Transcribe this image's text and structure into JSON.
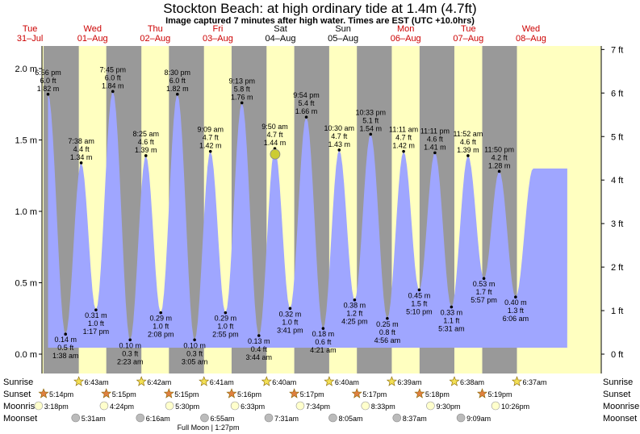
{
  "title": "Stockton Beach: at high  ordinary tide at 1.4m (4.7ft)",
  "subtitle": "Image captured 7 minutes after high water. Times are EST (UTC +10.0hrs)",
  "chart_data": {
    "type": "area",
    "x_unit": "date",
    "y_unit": "m",
    "ylim_m": [
      -0.08,
      2.12
    ],
    "y_ticks_m": [
      "0.0 m",
      "0.5 m",
      "1.0 m",
      "1.5 m",
      "2.0 m"
    ],
    "y_ticks_ft": [
      "0 ft",
      "1 ft",
      "2 ft",
      "3 ft",
      "4 ft",
      "5 ft",
      "6 ft",
      "7 ft"
    ],
    "days": [
      {
        "dow": "Tue",
        "date": "31–Jul"
      },
      {
        "dow": "Wed",
        "date": "01–Aug"
      },
      {
        "dow": "Thu",
        "date": "02–Aug"
      },
      {
        "dow": "Fri",
        "date": "03–Aug"
      },
      {
        "dow": "Sat",
        "date": "04–Aug"
      },
      {
        "dow": "Sun",
        "date": "05–Aug"
      },
      {
        "dow": "Mon",
        "date": "06–Aug"
      },
      {
        "dow": "Tue",
        "date": "07–Aug"
      },
      {
        "dow": "Wed",
        "date": "08–Aug"
      }
    ],
    "tides": [
      {
        "day": 0,
        "time": "6:56 pm",
        "ft": "6.0 ft",
        "m": 1.82,
        "label": "1.82 m",
        "type": "high"
      },
      {
        "day": 1,
        "time": "1:38 am",
        "ft": "0.5 ft",
        "m": 0.14,
        "label": "0.14 m",
        "type": "low"
      },
      {
        "day": 1,
        "time": "7:38 am",
        "ft": "4.4 ft",
        "m": 1.34,
        "label": "1.34 m",
        "type": "high"
      },
      {
        "day": 1,
        "time": "1:17 pm",
        "ft": "1.0 ft",
        "m": 0.31,
        "label": "0.31 m",
        "type": "low"
      },
      {
        "day": 1,
        "time": "7:45 pm",
        "ft": "6.0 ft",
        "m": 1.84,
        "label": "1.84 m",
        "type": "high"
      },
      {
        "day": 2,
        "time": "2:23 am",
        "ft": "0.3 ft",
        "m": 0.1,
        "label": "0.10 m",
        "type": "low"
      },
      {
        "day": 2,
        "time": "8:25 am",
        "ft": "4.6 ft",
        "m": 1.39,
        "label": "1.39 m",
        "type": "high"
      },
      {
        "day": 2,
        "time": "2:08 pm",
        "ft": "1.0 ft",
        "m": 0.29,
        "label": "0.29 m",
        "type": "low"
      },
      {
        "day": 2,
        "time": "8:30 pm",
        "ft": "6.0 ft",
        "m": 1.82,
        "label": "1.82 m",
        "type": "high"
      },
      {
        "day": 3,
        "time": "3:05 am",
        "ft": "0.3 ft",
        "m": 0.1,
        "label": "0.10 m",
        "type": "low"
      },
      {
        "day": 3,
        "time": "9:09 am",
        "ft": "4.7 ft",
        "m": 1.42,
        "label": "1.42 m",
        "type": "high"
      },
      {
        "day": 3,
        "time": "2:55 pm",
        "ft": "1.0 ft",
        "m": 0.29,
        "label": "0.29 m",
        "type": "low"
      },
      {
        "day": 3,
        "time": "9:13 pm",
        "ft": "5.8 ft",
        "m": 1.76,
        "label": "1.76 m",
        "type": "high"
      },
      {
        "day": 4,
        "time": "3:44 am",
        "ft": "0.4 ft",
        "m": 0.13,
        "label": "0.13 m",
        "type": "low"
      },
      {
        "day": 4,
        "time": "9:50 am",
        "ft": "4.7 ft",
        "m": 1.44,
        "label": "1.44 m",
        "type": "high"
      },
      {
        "day": 4,
        "time": "3:41 pm",
        "ft": "1.0 ft",
        "m": 0.32,
        "label": "0.32 m",
        "type": "low"
      },
      {
        "day": 4,
        "time": "9:54 pm",
        "ft": "5.4 ft",
        "m": 1.66,
        "label": "1.66 m",
        "type": "high"
      },
      {
        "day": 5,
        "time": "4:21 am",
        "ft": "0.6 ft",
        "m": 0.18,
        "label": "0.18 m",
        "type": "low"
      },
      {
        "day": 5,
        "time": "10:30 am",
        "ft": "4.7 ft",
        "m": 1.43,
        "label": "1.43 m",
        "type": "high"
      },
      {
        "day": 5,
        "time": "4:25 pm",
        "ft": "1.2 ft",
        "m": 0.38,
        "label": "0.38 m",
        "type": "low"
      },
      {
        "day": 5,
        "time": "10:33 pm",
        "ft": "5.1 ft",
        "m": 1.54,
        "label": "1.54 m",
        "type": "high"
      },
      {
        "day": 6,
        "time": "4:56 am",
        "ft": "0.8 ft",
        "m": 0.25,
        "label": "0.25 m",
        "type": "low"
      },
      {
        "day": 6,
        "time": "11:11 am",
        "ft": "4.7 ft",
        "m": 1.42,
        "label": "1.42 m",
        "type": "high"
      },
      {
        "day": 6,
        "time": "5:10 pm",
        "ft": "1.5 ft",
        "m": 0.45,
        "label": "0.45 m",
        "type": "low"
      },
      {
        "day": 6,
        "time": "11:11 pm",
        "ft": "4.6 ft",
        "m": 1.41,
        "label": "1.41 m",
        "type": "high"
      },
      {
        "day": 7,
        "time": "5:31 am",
        "ft": "1.1 ft",
        "m": 0.33,
        "label": "0.33 m",
        "type": "low"
      },
      {
        "day": 7,
        "time": "11:52 am",
        "ft": "4.6 ft",
        "m": 1.39,
        "label": "1.39 m",
        "type": "high"
      },
      {
        "day": 7,
        "time": "5:57 pm",
        "ft": "1.7 ft",
        "m": 0.53,
        "label": "0.53 m",
        "type": "low"
      },
      {
        "day": 7,
        "time": "11:50 pm",
        "ft": "4.2 ft",
        "m": 1.28,
        "label": "1.28 m",
        "type": "high"
      },
      {
        "day": 8,
        "time": "6:06 am",
        "ft": "1.3 ft",
        "m": 0.4,
        "label": "0.40 m",
        "type": "low"
      }
    ],
    "current": {
      "day": 4,
      "time": "9:57 am",
      "m": 1.4
    },
    "sunrise": [
      {
        "day": 1,
        "time": "6:43am"
      },
      {
        "day": 2,
        "time": "6:42am"
      },
      {
        "day": 3,
        "time": "6:41am"
      },
      {
        "day": 4,
        "time": "6:40am"
      },
      {
        "day": 5,
        "time": "6:40am"
      },
      {
        "day": 6,
        "time": "6:39am"
      },
      {
        "day": 7,
        "time": "6:38am"
      },
      {
        "day": 8,
        "time": "6:37am"
      }
    ],
    "sunset": [
      {
        "day": 0,
        "time": "5:14pm"
      },
      {
        "day": 1,
        "time": "5:15pm"
      },
      {
        "day": 2,
        "time": "5:15pm"
      },
      {
        "day": 3,
        "time": "5:16pm"
      },
      {
        "day": 4,
        "time": "5:17pm"
      },
      {
        "day": 5,
        "time": "5:17pm"
      },
      {
        "day": 6,
        "time": "5:18pm"
      },
      {
        "day": 7,
        "time": "5:19pm"
      }
    ],
    "moonrise": [
      {
        "day": 0,
        "time": "3:18pm"
      },
      {
        "day": 1,
        "time": "4:24pm"
      },
      {
        "day": 2,
        "time": "5:30pm"
      },
      {
        "day": 3,
        "time": "6:33pm"
      },
      {
        "day": 4,
        "time": "7:34pm"
      },
      {
        "day": 5,
        "time": "8:33pm"
      },
      {
        "day": 6,
        "time": "9:30pm"
      },
      {
        "day": 7,
        "time": "10:26pm"
      }
    ],
    "moonset": [
      {
        "day": 1,
        "time": "5:31am"
      },
      {
        "day": 2,
        "time": "6:16am"
      },
      {
        "day": 3,
        "time": "6:55am"
      },
      {
        "day": 4,
        "time": "7:31am"
      },
      {
        "day": 5,
        "time": "8:05am"
      },
      {
        "day": 6,
        "time": "8:37am"
      },
      {
        "day": 7,
        "time": "9:09am"
      }
    ],
    "row_labels": [
      "Sunrise",
      "Sunset",
      "Moonrise",
      "Moonset"
    ],
    "moon_phase": "Full Moon | 1:27pm",
    "colors": {
      "day": "#ffffc0",
      "night": "#999999",
      "water": "#9fa6ff",
      "sunday_text": "#cc0000",
      "marker": "#cccc33"
    }
  }
}
